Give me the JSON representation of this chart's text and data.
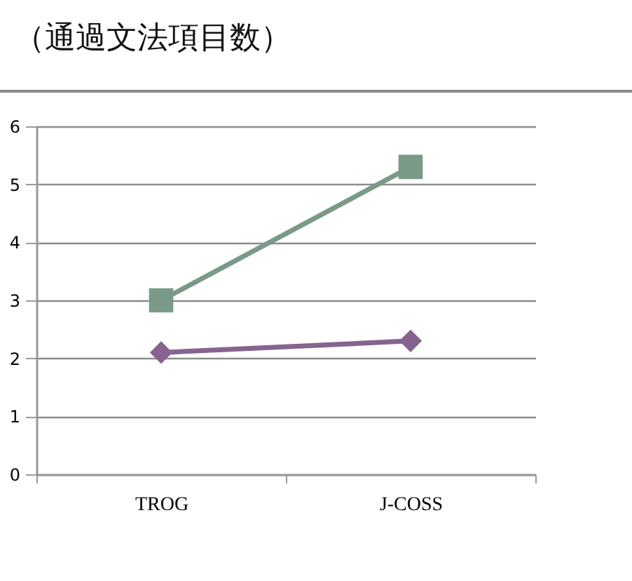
{
  "chart_data": {
    "type": "line",
    "title": "（通過文法項目数）",
    "categories": [
      "TROG",
      "J-COSS"
    ],
    "series": [
      {
        "color": "#7a9a88",
        "marker": "square",
        "values": [
          3.0,
          5.3
        ]
      },
      {
        "color": "#86648f",
        "marker": "diamond",
        "values": [
          2.1,
          2.3
        ]
      }
    ],
    "ylim": [
      0,
      6
    ],
    "yticks": [
      0,
      1,
      2,
      3,
      4,
      5,
      6
    ],
    "grid": "y"
  }
}
